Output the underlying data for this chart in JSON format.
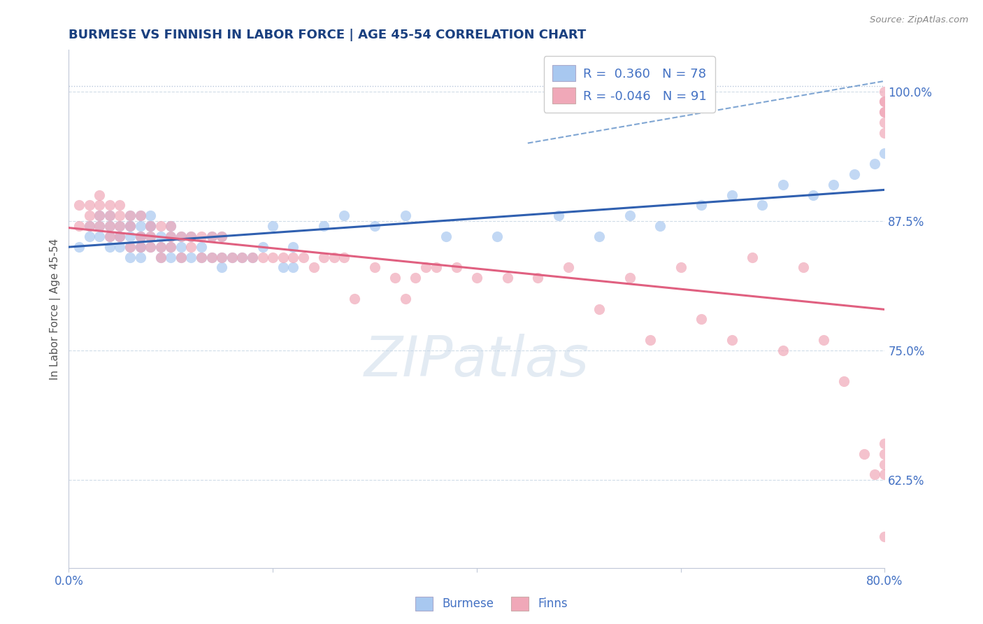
{
  "title": "BURMESE VS FINNISH IN LABOR FORCE | AGE 45-54 CORRELATION CHART",
  "source": "Source: ZipAtlas.com",
  "xlabel_burmese": "Burmese",
  "xlabel_finns": "Finns",
  "ylabel": "In Labor Force | Age 45-54",
  "x_min": 0.0,
  "x_max": 0.8,
  "y_min": 0.54,
  "y_max": 1.04,
  "y_ticks": [
    0.625,
    0.75,
    0.875,
    1.0
  ],
  "y_tick_labels": [
    "62.5%",
    "75.0%",
    "87.5%",
    "100.0%"
  ],
  "x_tick_labels_show": [
    "0.0%",
    "80.0%"
  ],
  "burmese_color": "#a8c8f0",
  "finns_color": "#f0a8b8",
  "burmese_line_color": "#3060b0",
  "finns_line_color": "#e06080",
  "r_burmese": 0.36,
  "n_burmese": 78,
  "r_finns": -0.046,
  "n_finns": 91,
  "watermark_text": "ZIPatlas",
  "background_color": "#ffffff",
  "grid_color": "#d0dce8",
  "tick_color": "#4472c4",
  "title_color": "#1a4080",
  "burmese_x": [
    0.01,
    0.02,
    0.02,
    0.03,
    0.03,
    0.03,
    0.04,
    0.04,
    0.04,
    0.04,
    0.05,
    0.05,
    0.05,
    0.05,
    0.06,
    0.06,
    0.06,
    0.06,
    0.06,
    0.06,
    0.07,
    0.07,
    0.07,
    0.07,
    0.07,
    0.07,
    0.07,
    0.08,
    0.08,
    0.08,
    0.08,
    0.08,
    0.09,
    0.09,
    0.09,
    0.1,
    0.1,
    0.1,
    0.1,
    0.11,
    0.11,
    0.11,
    0.12,
    0.12,
    0.13,
    0.13,
    0.14,
    0.14,
    0.15,
    0.15,
    0.15,
    0.16,
    0.17,
    0.18,
    0.19,
    0.2,
    0.21,
    0.22,
    0.22,
    0.25,
    0.27,
    0.3,
    0.33,
    0.37,
    0.42,
    0.48,
    0.52,
    0.55,
    0.58,
    0.62,
    0.65,
    0.68,
    0.7,
    0.73,
    0.75,
    0.77,
    0.79,
    0.8
  ],
  "burmese_y": [
    0.85,
    0.86,
    0.87,
    0.86,
    0.87,
    0.88,
    0.85,
    0.86,
    0.87,
    0.88,
    0.85,
    0.86,
    0.86,
    0.87,
    0.84,
    0.85,
    0.86,
    0.87,
    0.87,
    0.88,
    0.84,
    0.85,
    0.85,
    0.86,
    0.86,
    0.87,
    0.88,
    0.85,
    0.86,
    0.87,
    0.87,
    0.88,
    0.84,
    0.85,
    0.86,
    0.84,
    0.85,
    0.86,
    0.87,
    0.84,
    0.85,
    0.86,
    0.84,
    0.86,
    0.84,
    0.85,
    0.84,
    0.86,
    0.83,
    0.84,
    0.86,
    0.84,
    0.84,
    0.84,
    0.85,
    0.87,
    0.83,
    0.83,
    0.85,
    0.87,
    0.88,
    0.87,
    0.88,
    0.86,
    0.86,
    0.88,
    0.86,
    0.88,
    0.87,
    0.89,
    0.9,
    0.89,
    0.91,
    0.9,
    0.91,
    0.92,
    0.93,
    0.94
  ],
  "finns_x": [
    0.01,
    0.01,
    0.02,
    0.02,
    0.02,
    0.03,
    0.03,
    0.03,
    0.03,
    0.04,
    0.04,
    0.04,
    0.04,
    0.05,
    0.05,
    0.05,
    0.05,
    0.06,
    0.06,
    0.06,
    0.07,
    0.07,
    0.07,
    0.08,
    0.08,
    0.08,
    0.09,
    0.09,
    0.09,
    0.1,
    0.1,
    0.1,
    0.11,
    0.11,
    0.12,
    0.12,
    0.13,
    0.13,
    0.14,
    0.14,
    0.15,
    0.15,
    0.16,
    0.17,
    0.18,
    0.19,
    0.2,
    0.21,
    0.22,
    0.23,
    0.24,
    0.25,
    0.26,
    0.27,
    0.28,
    0.3,
    0.32,
    0.33,
    0.34,
    0.35,
    0.36,
    0.38,
    0.4,
    0.43,
    0.46,
    0.49,
    0.52,
    0.55,
    0.57,
    0.6,
    0.62,
    0.65,
    0.67,
    0.7,
    0.72,
    0.74,
    0.76,
    0.78,
    0.79,
    0.8,
    0.8,
    0.8,
    0.8,
    0.8,
    0.8,
    0.8,
    0.8,
    0.8,
    0.8,
    0.8,
    0.8
  ],
  "finns_y": [
    0.87,
    0.89,
    0.87,
    0.88,
    0.89,
    0.87,
    0.88,
    0.89,
    0.9,
    0.86,
    0.87,
    0.88,
    0.89,
    0.86,
    0.87,
    0.88,
    0.89,
    0.85,
    0.87,
    0.88,
    0.85,
    0.86,
    0.88,
    0.85,
    0.86,
    0.87,
    0.84,
    0.85,
    0.87,
    0.85,
    0.86,
    0.87,
    0.84,
    0.86,
    0.85,
    0.86,
    0.84,
    0.86,
    0.84,
    0.86,
    0.84,
    0.86,
    0.84,
    0.84,
    0.84,
    0.84,
    0.84,
    0.84,
    0.84,
    0.84,
    0.83,
    0.84,
    0.84,
    0.84,
    0.8,
    0.83,
    0.82,
    0.8,
    0.82,
    0.83,
    0.83,
    0.83,
    0.82,
    0.82,
    0.82,
    0.83,
    0.79,
    0.82,
    0.76,
    0.83,
    0.78,
    0.76,
    0.84,
    0.75,
    0.83,
    0.76,
    0.72,
    0.65,
    0.63,
    0.64,
    0.65,
    0.66,
    0.63,
    0.57,
    1.0,
    0.99,
    0.99,
    0.98,
    0.98,
    0.97,
    0.96
  ]
}
